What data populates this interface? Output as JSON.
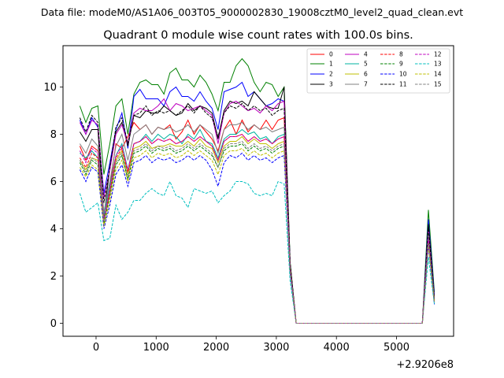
{
  "chart_data": {
    "type": "line",
    "suptitle": "Data file: modeM0/AS1A06_003T05_9000002830_19008cztM0_level2_quad_clean.evt",
    "title": "Quadrant 0 module wise count rates with 100.0s bins.",
    "xlabel": "",
    "ylabel": "",
    "x_offset_label": "+2.9206e8",
    "xlim": [
      -550,
      5950
    ],
    "ylim": [
      -0.55,
      11.75
    ],
    "xticks": [
      0,
      1000,
      2000,
      3000,
      4000,
      5000
    ],
    "xtick_labels": [
      "0",
      "1000",
      "2000",
      "3000",
      "4000",
      "5000"
    ],
    "yticks": [
      0,
      2,
      4,
      6,
      8,
      10
    ],
    "ytick_labels": [
      "0",
      "2",
      "4",
      "6",
      "8",
      "10"
    ],
    "grid": false,
    "legend_position": "top-right",
    "x": [
      -270,
      -170,
      -70,
      30,
      130,
      230,
      330,
      430,
      530,
      630,
      730,
      830,
      930,
      1030,
      1130,
      1230,
      1330,
      1430,
      1530,
      1630,
      1730,
      1830,
      1930,
      2030,
      2130,
      2230,
      2330,
      2430,
      2530,
      2630,
      2730,
      2830,
      2930,
      3030,
      3130,
      3230,
      3330,
      3430,
      3530,
      3630,
      3730,
      3830,
      3930,
      4030,
      4130,
      4230,
      4330,
      4430,
      4530,
      4630,
      4730,
      4830,
      4930,
      5030,
      5130,
      5230,
      5330,
      5430,
      5530,
      5630
    ],
    "series": [
      {
        "name": "0",
        "color": "#ff0000",
        "dash": "solid",
        "values": [
          7.5,
          6.9,
          7.5,
          7.3,
          4.3,
          5.8,
          7.6,
          7.4,
          7.9,
          8.5,
          8.2,
          8.4,
          8.0,
          8.3,
          8.2,
          8.4,
          7.8,
          8.1,
          8.6,
          8.0,
          8.4,
          8.1,
          7.8,
          7.3,
          8.2,
          8.6,
          8.0,
          8.6,
          8.1,
          8.4,
          8.2,
          8.6,
          8.2,
          8.6,
          8.7,
          2.5,
          0.0,
          0.0,
          0.0,
          0.0,
          0.0,
          0.0,
          0.0,
          0.0,
          0.0,
          0.0,
          0.0,
          0.0,
          0.0,
          0.0,
          0.0,
          0.0,
          0.0,
          0.0,
          0.0,
          0.0,
          0.0,
          0.0,
          3.9,
          1.1
        ]
      },
      {
        "name": "1",
        "color": "#008000",
        "dash": "solid",
        "values": [
          9.2,
          8.5,
          9.1,
          9.2,
          6.3,
          7.6,
          9.2,
          9.5,
          8.0,
          9.7,
          10.2,
          10.3,
          10.1,
          10.1,
          9.7,
          10.6,
          10.8,
          10.3,
          10.3,
          10.0,
          10.5,
          10.2,
          9.7,
          9.0,
          10.2,
          10.2,
          10.9,
          11.2,
          10.9,
          10.2,
          9.8,
          10.2,
          10.1,
          9.6,
          10.0,
          2.6,
          0.0,
          0.0,
          0.0,
          0.0,
          0.0,
          0.0,
          0.0,
          0.0,
          0.0,
          0.0,
          0.0,
          0.0,
          0.0,
          0.0,
          0.0,
          0.0,
          0.0,
          0.0,
          0.0,
          0.0,
          0.0,
          0.0,
          4.8,
          1.3
        ]
      },
      {
        "name": "2",
        "color": "#0000ff",
        "dash": "solid",
        "values": [
          8.6,
          8.0,
          8.7,
          8.3,
          5.5,
          6.8,
          8.2,
          8.9,
          7.4,
          9.6,
          9.9,
          9.5,
          9.5,
          9.5,
          9.2,
          9.8,
          10.0,
          9.6,
          9.6,
          9.4,
          9.8,
          9.4,
          9.1,
          8.2,
          9.8,
          9.9,
          10.0,
          10.2,
          9.6,
          9.8,
          9.5,
          9.2,
          9.3,
          9.5,
          9.4,
          2.5,
          0.0,
          0.0,
          0.0,
          0.0,
          0.0,
          0.0,
          0.0,
          0.0,
          0.0,
          0.0,
          0.0,
          0.0,
          0.0,
          0.0,
          0.0,
          0.0,
          0.0,
          0.0,
          0.0,
          0.0,
          0.0,
          0.0,
          4.4,
          1.2
        ]
      },
      {
        "name": "3",
        "color": "#000000",
        "dash": "solid",
        "values": [
          8.1,
          7.7,
          8.2,
          8.2,
          4.5,
          6.6,
          8.1,
          8.5,
          7.5,
          8.8,
          8.7,
          9.0,
          8.9,
          8.9,
          9.2,
          9.0,
          8.8,
          8.9,
          9.3,
          9.0,
          9.2,
          9.1,
          8.9,
          7.8,
          9.0,
          9.4,
          9.3,
          9.4,
          9.2,
          9.8,
          9.5,
          9.2,
          9.1,
          9.1,
          10.0,
          2.5,
          0.0,
          0.0,
          0.0,
          0.0,
          0.0,
          0.0,
          0.0,
          0.0,
          0.0,
          0.0,
          0.0,
          0.0,
          0.0,
          0.0,
          0.0,
          0.0,
          0.0,
          0.0,
          0.0,
          0.0,
          0.0,
          0.0,
          4.2,
          1.1
        ]
      },
      {
        "name": "4",
        "color": "#bf00bf",
        "dash": "solid",
        "values": [
          8.5,
          8.0,
          8.6,
          8.4,
          5.3,
          6.5,
          8.0,
          8.4,
          7.6,
          8.9,
          9.1,
          9.0,
          9.0,
          9.2,
          9.5,
          9.0,
          9.3,
          9.2,
          9.0,
          9.1,
          9.2,
          9.0,
          8.8,
          7.6,
          8.9,
          9.3,
          9.4,
          9.2,
          9.0,
          9.1,
          8.9,
          9.2,
          9.0,
          9.3,
          9.4,
          2.4,
          0.0,
          0.0,
          0.0,
          0.0,
          0.0,
          0.0,
          0.0,
          0.0,
          0.0,
          0.0,
          0.0,
          0.0,
          0.0,
          0.0,
          0.0,
          0.0,
          0.0,
          0.0,
          0.0,
          0.0,
          0.0,
          0.0,
          4.0,
          1.0
        ]
      },
      {
        "name": "5",
        "color": "#00b3a0",
        "dash": "solid",
        "values": [
          7.2,
          7.0,
          7.3,
          7.0,
          4.6,
          5.8,
          7.1,
          7.6,
          6.5,
          7.6,
          7.7,
          8.0,
          7.7,
          8.0,
          7.8,
          8.0,
          7.9,
          7.6,
          8.0,
          7.8,
          8.2,
          7.7,
          7.6,
          7.0,
          7.8,
          8.0,
          8.0,
          8.2,
          8.0,
          8.1,
          7.8,
          7.9,
          7.6,
          7.9,
          8.0,
          2.3,
          0.0,
          0.0,
          0.0,
          0.0,
          0.0,
          0.0,
          0.0,
          0.0,
          0.0,
          0.0,
          0.0,
          0.0,
          0.0,
          0.0,
          0.0,
          0.0,
          0.0,
          0.0,
          0.0,
          0.0,
          0.0,
          0.0,
          3.6,
          0.9
        ]
      },
      {
        "name": "6",
        "color": "#bfbf00",
        "dash": "solid",
        "values": [
          6.9,
          6.5,
          7.0,
          6.9,
          4.4,
          5.5,
          6.9,
          7.3,
          6.3,
          7.4,
          7.5,
          7.7,
          7.4,
          7.5,
          7.5,
          7.6,
          7.5,
          7.5,
          7.7,
          7.5,
          7.8,
          7.5,
          7.4,
          6.8,
          7.5,
          7.7,
          7.7,
          7.9,
          7.6,
          7.8,
          7.6,
          7.6,
          7.4,
          7.6,
          7.7,
          2.2,
          0.0,
          0.0,
          0.0,
          0.0,
          0.0,
          0.0,
          0.0,
          0.0,
          0.0,
          0.0,
          0.0,
          0.0,
          0.0,
          0.0,
          0.0,
          0.0,
          0.0,
          0.0,
          0.0,
          0.0,
          0.0,
          0.0,
          3.5,
          0.9
        ]
      },
      {
        "name": "7",
        "color": "#808080",
        "dash": "solid",
        "values": [
          7.6,
          7.2,
          7.8,
          7.5,
          4.7,
          6.0,
          7.5,
          8.0,
          6.9,
          8.0,
          8.2,
          8.4,
          8.0,
          8.3,
          8.2,
          8.3,
          8.1,
          8.2,
          8.4,
          8.1,
          8.4,
          8.2,
          8.0,
          7.2,
          8.2,
          8.4,
          8.4,
          8.5,
          8.2,
          8.4,
          8.2,
          8.3,
          8.1,
          8.2,
          8.3,
          2.4,
          0.0,
          0.0,
          0.0,
          0.0,
          0.0,
          0.0,
          0.0,
          0.0,
          0.0,
          0.0,
          0.0,
          0.0,
          0.0,
          0.0,
          0.0,
          0.0,
          0.0,
          0.0,
          0.0,
          0.0,
          0.0,
          0.0,
          3.8,
          1.0
        ]
      },
      {
        "name": "8",
        "color": "#ff0000",
        "dash": "dashed",
        "values": [
          7.0,
          6.6,
          7.2,
          7.0,
          4.2,
          5.6,
          7.0,
          7.4,
          6.4,
          7.6,
          7.7,
          7.9,
          7.6,
          7.8,
          7.7,
          7.8,
          7.6,
          7.7,
          7.9,
          7.7,
          7.9,
          7.7,
          7.5,
          6.9,
          7.7,
          7.9,
          7.9,
          8.0,
          7.7,
          7.9,
          7.7,
          7.8,
          7.6,
          7.8,
          7.9,
          2.3,
          0.0,
          0.0,
          0.0,
          0.0,
          0.0,
          0.0,
          0.0,
          0.0,
          0.0,
          0.0,
          0.0,
          0.0,
          0.0,
          0.0,
          0.0,
          0.0,
          0.0,
          0.0,
          0.0,
          0.0,
          0.0,
          0.0,
          3.5,
          0.9
        ]
      },
      {
        "name": "9",
        "color": "#008000",
        "dash": "dashed",
        "values": [
          6.8,
          6.3,
          6.9,
          6.7,
          4.2,
          5.4,
          6.7,
          7.1,
          6.1,
          7.2,
          7.3,
          7.5,
          7.2,
          7.4,
          7.3,
          7.4,
          7.2,
          7.3,
          7.5,
          7.3,
          7.5,
          7.3,
          7.1,
          6.6,
          7.3,
          7.5,
          7.5,
          7.6,
          7.3,
          7.5,
          7.3,
          7.4,
          7.2,
          7.4,
          7.5,
          2.2,
          0.0,
          0.0,
          0.0,
          0.0,
          0.0,
          0.0,
          0.0,
          0.0,
          0.0,
          0.0,
          0.0,
          0.0,
          0.0,
          0.0,
          0.0,
          0.0,
          0.0,
          0.0,
          0.0,
          0.0,
          0.0,
          0.0,
          3.4,
          0.9
        ]
      },
      {
        "name": "10",
        "color": "#0000ff",
        "dash": "dashed",
        "values": [
          6.5,
          6.0,
          6.6,
          6.4,
          4.0,
          5.0,
          6.3,
          6.7,
          5.8,
          6.8,
          6.9,
          7.1,
          6.8,
          7.0,
          6.9,
          7.0,
          6.8,
          6.9,
          7.1,
          6.9,
          7.1,
          6.9,
          6.5,
          5.8,
          6.8,
          7.1,
          7.0,
          7.2,
          6.9,
          7.1,
          6.9,
          7.0,
          6.8,
          7.0,
          7.1,
          2.1,
          0.0,
          0.0,
          0.0,
          0.0,
          0.0,
          0.0,
          0.0,
          0.0,
          0.0,
          0.0,
          0.0,
          0.0,
          0.0,
          0.0,
          0.0,
          0.0,
          0.0,
          0.0,
          0.0,
          0.0,
          0.0,
          0.0,
          3.3,
          0.8
        ]
      },
      {
        "name": "11",
        "color": "#000000",
        "dash": "dashed",
        "values": [
          8.7,
          8.1,
          8.8,
          8.5,
          5.1,
          6.6,
          8.3,
          8.7,
          7.6,
          8.8,
          8.9,
          9.2,
          8.8,
          9.0,
          8.9,
          9.0,
          8.8,
          9.0,
          9.2,
          8.9,
          9.2,
          8.9,
          8.7,
          7.9,
          8.9,
          9.2,
          9.1,
          9.3,
          9.0,
          9.2,
          9.0,
          9.1,
          8.8,
          9.0,
          9.1,
          2.6,
          0.0,
          0.0,
          0.0,
          0.0,
          0.0,
          0.0,
          0.0,
          0.0,
          0.0,
          0.0,
          0.0,
          0.0,
          0.0,
          0.0,
          0.0,
          0.0,
          0.0,
          0.0,
          0.0,
          0.0,
          0.0,
          0.0,
          4.1,
          1.0
        ]
      },
      {
        "name": "12",
        "color": "#bf00bf",
        "dash": "dashed",
        "values": [
          7.3,
          6.8,
          7.4,
          7.2,
          4.4,
          5.7,
          7.1,
          7.5,
          6.5,
          7.6,
          7.7,
          7.9,
          7.6,
          7.8,
          7.7,
          7.8,
          7.6,
          7.7,
          7.9,
          7.7,
          7.9,
          7.7,
          7.5,
          6.9,
          7.7,
          7.9,
          7.9,
          8.0,
          7.7,
          7.9,
          7.7,
          7.8,
          7.6,
          7.8,
          7.9,
          2.3,
          0.0,
          0.0,
          0.0,
          0.0,
          0.0,
          0.0,
          0.0,
          0.0,
          0.0,
          0.0,
          0.0,
          0.0,
          0.0,
          0.0,
          0.0,
          0.0,
          0.0,
          0.0,
          0.0,
          0.0,
          0.0,
          0.0,
          3.6,
          0.9
        ]
      },
      {
        "name": "13",
        "color": "#00bfbf",
        "dash": "dashed",
        "values": [
          5.5,
          4.7,
          4.9,
          5.1,
          3.5,
          3.6,
          5.0,
          4.4,
          4.7,
          5.2,
          5.2,
          5.5,
          5.7,
          5.5,
          5.4,
          6.0,
          5.4,
          5.3,
          4.9,
          5.7,
          5.6,
          5.5,
          5.6,
          5.1,
          5.4,
          5.6,
          6.0,
          6.0,
          5.9,
          5.5,
          5.4,
          5.5,
          5.4,
          6.0,
          5.9,
          1.8,
          0.0,
          0.0,
          0.0,
          0.0,
          0.0,
          0.0,
          0.0,
          0.0,
          0.0,
          0.0,
          0.0,
          0.0,
          0.0,
          0.0,
          0.0,
          0.0,
          0.0,
          0.0,
          0.0,
          0.0,
          0.0,
          0.0,
          2.8,
          0.8
        ]
      },
      {
        "name": "14",
        "color": "#bfbf00",
        "dash": "dashed",
        "values": [
          6.6,
          6.2,
          6.7,
          6.5,
          4.1,
          5.2,
          6.5,
          6.9,
          6.0,
          7.0,
          7.1,
          7.3,
          7.0,
          7.2,
          7.1,
          7.2,
          7.0,
          7.1,
          7.3,
          7.1,
          7.3,
          7.1,
          6.9,
          6.3,
          7.1,
          7.3,
          7.3,
          7.4,
          7.1,
          7.3,
          7.1,
          7.2,
          7.0,
          7.2,
          7.3,
          2.2,
          0.0,
          0.0,
          0.0,
          0.0,
          0.0,
          0.0,
          0.0,
          0.0,
          0.0,
          0.0,
          0.0,
          0.0,
          0.0,
          0.0,
          0.0,
          0.0,
          0.0,
          0.0,
          0.0,
          0.0,
          0.0,
          0.0,
          3.3,
          0.9
        ]
      },
      {
        "name": "15",
        "color": "#808080",
        "dash": "dashed",
        "values": [
          6.9,
          6.4,
          7.0,
          6.8,
          4.3,
          5.4,
          6.8,
          7.2,
          6.2,
          7.3,
          7.4,
          7.6,
          7.3,
          7.5,
          7.4,
          7.5,
          7.3,
          7.4,
          7.6,
          7.4,
          7.6,
          7.4,
          7.2,
          6.6,
          7.4,
          7.6,
          7.6,
          7.7,
          7.4,
          7.6,
          7.4,
          7.5,
          7.3,
          7.5,
          7.6,
          2.2,
          0.0,
          0.0,
          0.0,
          0.0,
          0.0,
          0.0,
          0.0,
          0.0,
          0.0,
          0.0,
          0.0,
          0.0,
          0.0,
          0.0,
          0.0,
          0.0,
          0.0,
          0.0,
          0.0,
          0.0,
          0.0,
          0.0,
          3.4,
          0.9
        ]
      }
    ]
  }
}
